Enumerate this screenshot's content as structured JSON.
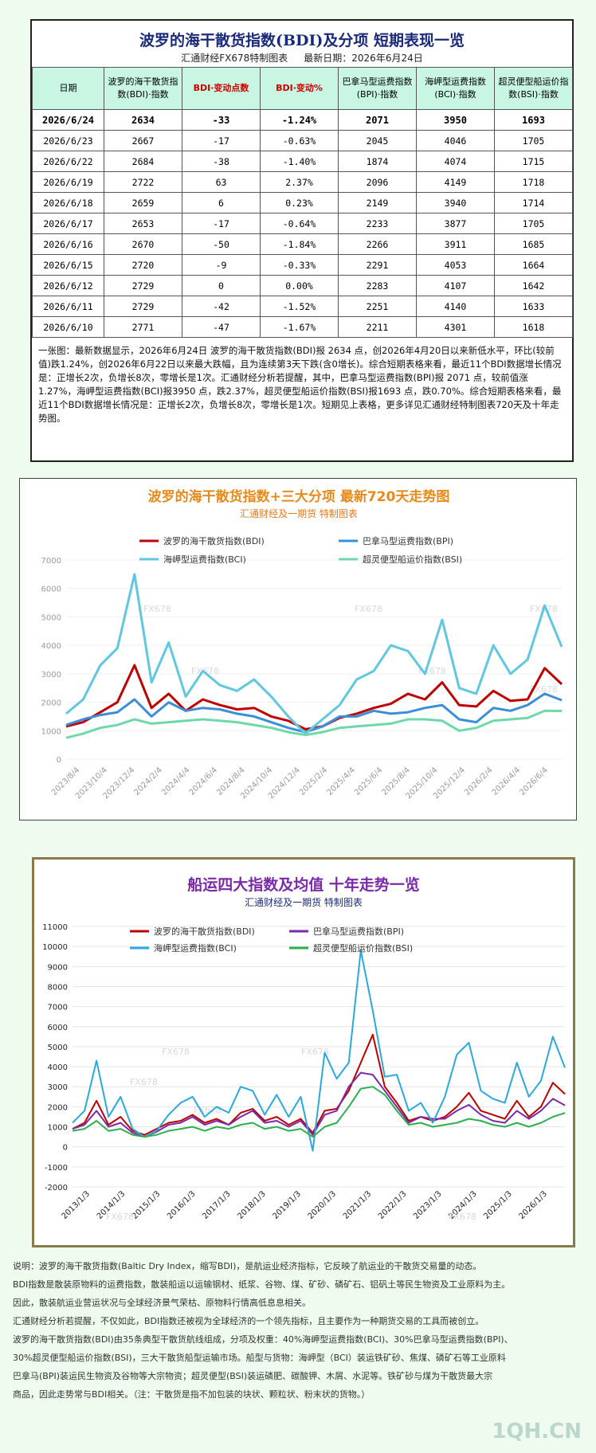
{
  "table": {
    "title": "波罗的海干散货指数(BDI)及分项 短期表现一览",
    "maker": "汇通财经FX678特制图表",
    "date_label": "最新日期：2026年6月24日",
    "headers": [
      "日期",
      "波罗的海干散货指数(BDI)·指数",
      "BDI·变动点数",
      "BDI·变动%",
      "巴拿马型运费指数(BPI)·指数",
      "海岬型运费指数(BCI)·指数",
      "超灵便型船运价指数(BSI)·指数"
    ],
    "rows": [
      [
        "2026/6/24",
        "2634",
        "-33",
        "-1.24%",
        "2071",
        "3950",
        "1693"
      ],
      [
        "2026/6/23",
        "2667",
        "-17",
        "-0.63%",
        "2045",
        "4046",
        "1705"
      ],
      [
        "2026/6/22",
        "2684",
        "-38",
        "-1.40%",
        "1874",
        "4074",
        "1715"
      ],
      [
        "2026/6/19",
        "2722",
        "63",
        "2.37%",
        "2096",
        "4149",
        "1718"
      ],
      [
        "2026/6/18",
        "2659",
        "6",
        "0.23%",
        "2149",
        "3940",
        "1714"
      ],
      [
        "2026/6/17",
        "2653",
        "-17",
        "-0.64%",
        "2233",
        "3877",
        "1705"
      ],
      [
        "2026/6/16",
        "2670",
        "-50",
        "-1.84%",
        "2266",
        "3911",
        "1685"
      ],
      [
        "2026/6/15",
        "2720",
        "-9",
        "-0.33%",
        "2291",
        "4053",
        "1664"
      ],
      [
        "2026/6/12",
        "2729",
        "0",
        "0.00%",
        "2283",
        "4107",
        "1642"
      ],
      [
        "2026/6/11",
        "2729",
        "-42",
        "-1.52%",
        "2251",
        "4140",
        "1633"
      ],
      [
        "2026/6/10",
        "2771",
        "-47",
        "-1.67%",
        "2211",
        "4301",
        "1618"
      ]
    ],
    "note": "一张图：最新数据显示，2026年6月24日 波罗的海干散货指数(BDI)报 2634 点，创2026年4月20日以来新低水平，环比(较前值)跌1.24%，创2026年6月22日以来最大跌幅，且为连续第3天下跌(含0增长)。综合短期表格来看，最近11个BDI数据增长情况是：正增长2次，负增长8次，零增长是1次。汇通财经分析若提醒，其中，巴拿马型运费指数(BPI)报 2071 点，较前值涨1.27%，海岬型运费指数(BCI)报3950 点，跌2.37%，超灵便型船运价指数(BSI)报1693 点，跌0.70%。综合短期表格来看，最近11个BDI数据增长情况是：正增长2次，负增长8次，零增长是1次。短期见上表格，更多详见汇通财经特制图表720天及十年走势图。"
  },
  "chart_data": [
    {
      "type": "line",
      "title": "波罗的海干散货指数+三大分项  最新720天走势图",
      "subtitle": "汇通财经及一期货  特制图表",
      "watermark": "FX678",
      "ylim": [
        0,
        7000
      ],
      "yticks": [
        "0",
        "1000",
        "2000",
        "3000",
        "4000",
        "5000",
        "6000",
        "7000"
      ],
      "xticks": [
        "2023/8/4",
        "2023/10/4",
        "2023/12/4",
        "2024/2/4",
        "2024/4/4",
        "2024/6/4",
        "2024/8/4",
        "2024/10/4",
        "2024/12/4",
        "2025/2/4",
        "2025/4/4",
        "2025/6/4",
        "2025/8/4",
        "2025/10/4",
        "2025/12/4",
        "2026/2/4",
        "2026/4/4",
        "2026/6/4"
      ],
      "series": [
        {
          "name": "波罗的海干散货指数(BDI)",
          "color": "#c00000",
          "values": [
            1150,
            1300,
            1650,
            2000,
            3300,
            1800,
            2300,
            1700,
            2100,
            1900,
            1750,
            1800,
            1500,
            1350,
            1050,
            1150,
            1450,
            1600,
            1800,
            1950,
            2300,
            2100,
            2700,
            1900,
            1850,
            2400,
            2050,
            2100,
            3200,
            2634
          ]
        },
        {
          "name": "巴拿马型运费指数(BPI)",
          "color": "#3a8fd8",
          "values": [
            1200,
            1400,
            1550,
            1650,
            2100,
            1500,
            2000,
            1700,
            1800,
            1750,
            1600,
            1500,
            1300,
            1100,
            950,
            1150,
            1500,
            1500,
            1700,
            1600,
            1650,
            1800,
            1900,
            1400,
            1300,
            1800,
            1700,
            1900,
            2300,
            2071
          ]
        },
        {
          "name": "海岬型运费指数(BCI)",
          "color": "#5fc8e0",
          "values": [
            1600,
            2100,
            3300,
            3900,
            6500,
            2700,
            4100,
            2200,
            3100,
            2600,
            2400,
            2800,
            2200,
            1500,
            900,
            1400,
            1900,
            2800,
            3100,
            4000,
            3800,
            3000,
            4900,
            2500,
            2300,
            4000,
            3000,
            3500,
            5400,
            3950
          ]
        },
        {
          "name": "超灵便型船运价指数(BSI)",
          "color": "#6ed9a8",
          "values": [
            750,
            900,
            1100,
            1200,
            1400,
            1250,
            1300,
            1350,
            1400,
            1350,
            1300,
            1200,
            1100,
            950,
            850,
            950,
            1100,
            1150,
            1200,
            1250,
            1400,
            1400,
            1350,
            1000,
            1100,
            1350,
            1400,
            1450,
            1700,
            1693
          ]
        }
      ]
    },
    {
      "type": "line",
      "title": "船运四大指数及均值 十年走势一览",
      "subtitle": "汇通财经及一期货 特制图表",
      "watermark": "FX678",
      "ylim": [
        -2000,
        11000
      ],
      "yticks": [
        "-2000",
        "-1000",
        "0",
        "1000",
        "2000",
        "3000",
        "4000",
        "5000",
        "6000",
        "7000",
        "8000",
        "9000",
        "10000",
        "11000"
      ],
      "xticks": [
        "2013/1/3",
        "2014/1/3",
        "2015/1/3",
        "2016/1/3",
        "2017/1/3",
        "2018/1/3",
        "2019/1/3",
        "2020/1/3",
        "2021/1/3",
        "2022/1/3",
        "2023/1/3",
        "2024/1/3",
        "2025/1/3",
        "2026/1/3"
      ],
      "series": [
        {
          "name": "波罗的海干散货指数(BDI)",
          "color": "#c00000",
          "values": [
            900,
            1200,
            2300,
            1100,
            1500,
            800,
            600,
            900,
            1200,
            1300,
            1600,
            1200,
            1400,
            1100,
            1700,
            1900,
            1300,
            1500,
            1100,
            1400,
            700,
            1800,
            1900,
            2800,
            4200,
            5600,
            3000,
            2200,
            1300,
            1500,
            1300,
            1500,
            2000,
            2700,
            1800,
            1600,
            1400,
            2300,
            1500,
            2000,
            3200,
            2634
          ]
        },
        {
          "name": "巴拿马型运费指数(BPI)",
          "color": "#7b2aa8",
          "values": [
            900,
            1100,
            1800,
            1000,
            1200,
            700,
            500,
            750,
            1100,
            1200,
            1500,
            1100,
            1300,
            1100,
            1500,
            1800,
            1200,
            1300,
            1000,
            1300,
            600,
            1600,
            1800,
            3000,
            3700,
            3600,
            2800,
            2000,
            1200,
            1500,
            1400,
            1400,
            1800,
            2100,
            1600,
            1300,
            1200,
            1800,
            1400,
            1800,
            2400,
            2071
          ]
        },
        {
          "name": "海岬型运费指数(BCI)",
          "color": "#2aa8e0",
          "values": [
            1200,
            1800,
            4300,
            1500,
            2500,
            900,
            500,
            800,
            1600,
            2200,
            2500,
            1500,
            2000,
            1700,
            3000,
            2800,
            1600,
            2600,
            1500,
            2500,
            -200,
            4700,
            3400,
            4200,
            9800,
            6800,
            3500,
            3600,
            1800,
            2200,
            1200,
            2500,
            4600,
            5200,
            2800,
            2400,
            2200,
            4200,
            2500,
            3300,
            5500,
            3950
          ]
        },
        {
          "name": "超灵便型船运价指数(BSI)",
          "color": "#2bb050",
          "values": [
            800,
            900,
            1300,
            800,
            900,
            600,
            500,
            600,
            800,
            900,
            1000,
            800,
            1000,
            900,
            1100,
            1200,
            900,
            1000,
            800,
            900,
            500,
            1000,
            1200,
            2000,
            2900,
            3000,
            2600,
            1800,
            1100,
            1200,
            1000,
            1100,
            1200,
            1400,
            1300,
            1100,
            1000,
            1200,
            1000,
            1200,
            1500,
            1693
          ]
        }
      ]
    }
  ],
  "footer": [
    "说明：波罗的海干散货指数(Baltic Dry Index，缩写BDI)，是航运业经济指标，它反映了航运业的干散货交易量的动态。",
    "BDI指数是散装原物料的运费指数，散装船运以运输钢材、纸浆、谷物、煤、矿砂、磷矿石、铝矾土等民生物资及工业原料为主。",
    "因此，散装航运业营运状况与全球经济景气荣枯、原物料行情高低息息相关。",
    "汇通财经分析若提醒，不仅如此，BDI指数还被视为全球经济的一个领先指标，且主要作为一种期货交易的工具而被创立。",
    "波罗的海干散货指数(BDI)由35条典型干散货航线组成，分项及权重：40%海岬型运费指数(BCI)、30%巴拿马型运费指数(BPI)、",
    "30%超灵便型船运价指数(BSI)，三大干散货船型运输市场。船型与货物：海岬型（BCI）装运铁矿砂、焦煤、磷矿石等工业原料",
    "巴拿马(BPI)装运民生物资及谷物等大宗物资；超灵便型(BSI)装运磷肥、碳酸钾、木屑、水泥等。铁矿砂与煤为干散货最大宗",
    "商品，因此走势常与BDI相关。（注：干散货是指不加包装的块状、颗粒状、粉末状的货物。）"
  ],
  "watermark_site": "1QH.CN"
}
